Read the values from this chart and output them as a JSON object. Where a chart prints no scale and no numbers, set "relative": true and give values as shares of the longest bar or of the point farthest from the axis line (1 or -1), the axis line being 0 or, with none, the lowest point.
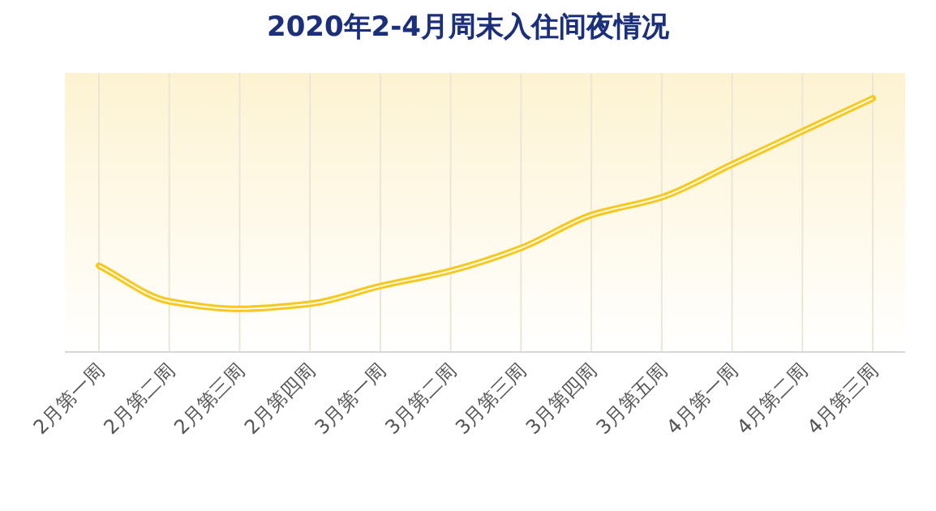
{
  "chart_data": {
    "type": "line",
    "title": "2020年2-4月周末入住间夜情况",
    "relative": true,
    "grid": "x",
    "categories": [
      "2月第一周",
      "2月第二周",
      "2月第三周",
      "2月第四周",
      "3月第一周",
      "3月第二周",
      "3月第三周",
      "3月第四周",
      "3月第五周",
      "4月第一周",
      "4月第二周",
      "4月第三周"
    ],
    "series": [
      {
        "color": "#f7c81e",
        "values": [
          0.34,
          0.2,
          0.17,
          0.19,
          0.26,
          0.32,
          0.41,
          0.54,
          0.61,
          0.74,
          0.87,
          1
        ]
      }
    ]
  }
}
